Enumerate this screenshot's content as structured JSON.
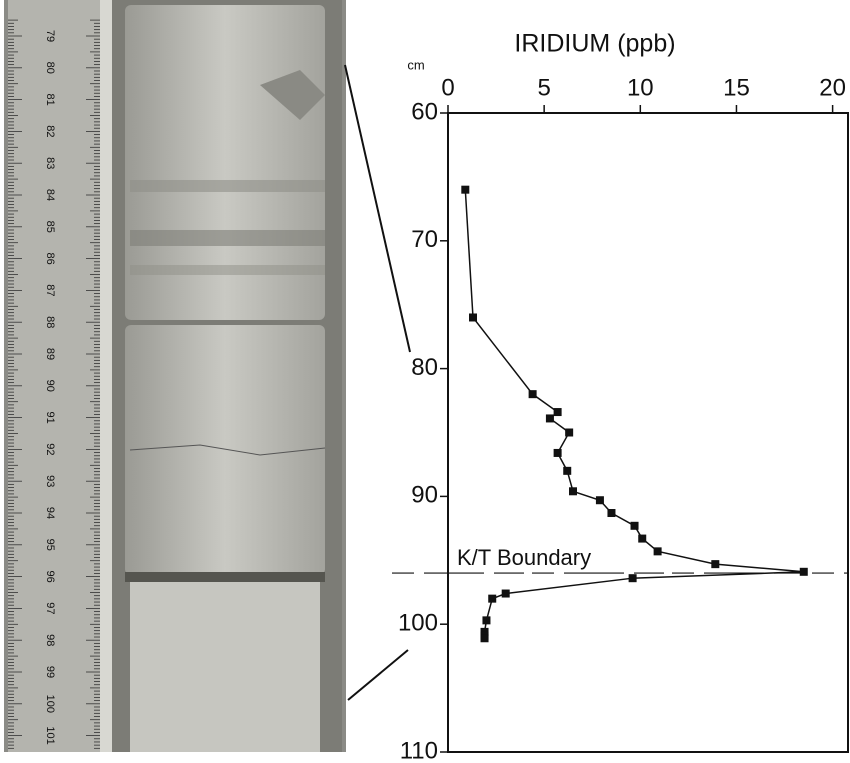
{
  "ruler_labels": [
    "79",
    "80",
    "81",
    "82",
    "83",
    "84",
    "85",
    "86",
    "87",
    "88",
    "89",
    "90",
    "91",
    "92",
    "93",
    "94",
    "95",
    "96",
    "97",
    "98",
    "99",
    "100",
    "101"
  ],
  "chart_data": {
    "type": "line",
    "title": "IRIDIUM  (ppb)",
    "y_unit": "cm",
    "x": [
      0.9,
      1.3,
      4.4,
      5.7,
      5.3,
      6.3,
      5.7,
      6.2,
      6.5,
      7.9,
      8.5,
      9.7,
      10.1,
      10.9,
      13.9,
      18.5,
      9.6,
      3.0,
      2.3,
      2.0,
      1.9,
      1.9,
      1.9
    ],
    "y": [
      66,
      76,
      82,
      83.4,
      83.9,
      85,
      86.6,
      88,
      89.6,
      90.3,
      91.3,
      92.3,
      93.3,
      94.3,
      95.3,
      95.9,
      96.4,
      97.6,
      98,
      99.7,
      100.6,
      100.9,
      101.1
    ],
    "color": "#111111",
    "xlim": [
      0,
      20.8
    ],
    "xticks": [
      0,
      5,
      10,
      15,
      20
    ],
    "ylim": [
      60,
      110
    ],
    "yticks": [
      60,
      70,
      80,
      90,
      100,
      110
    ],
    "y_inverted": true,
    "boundary": {
      "label": "K/T Boundary",
      "y": 96
    }
  }
}
